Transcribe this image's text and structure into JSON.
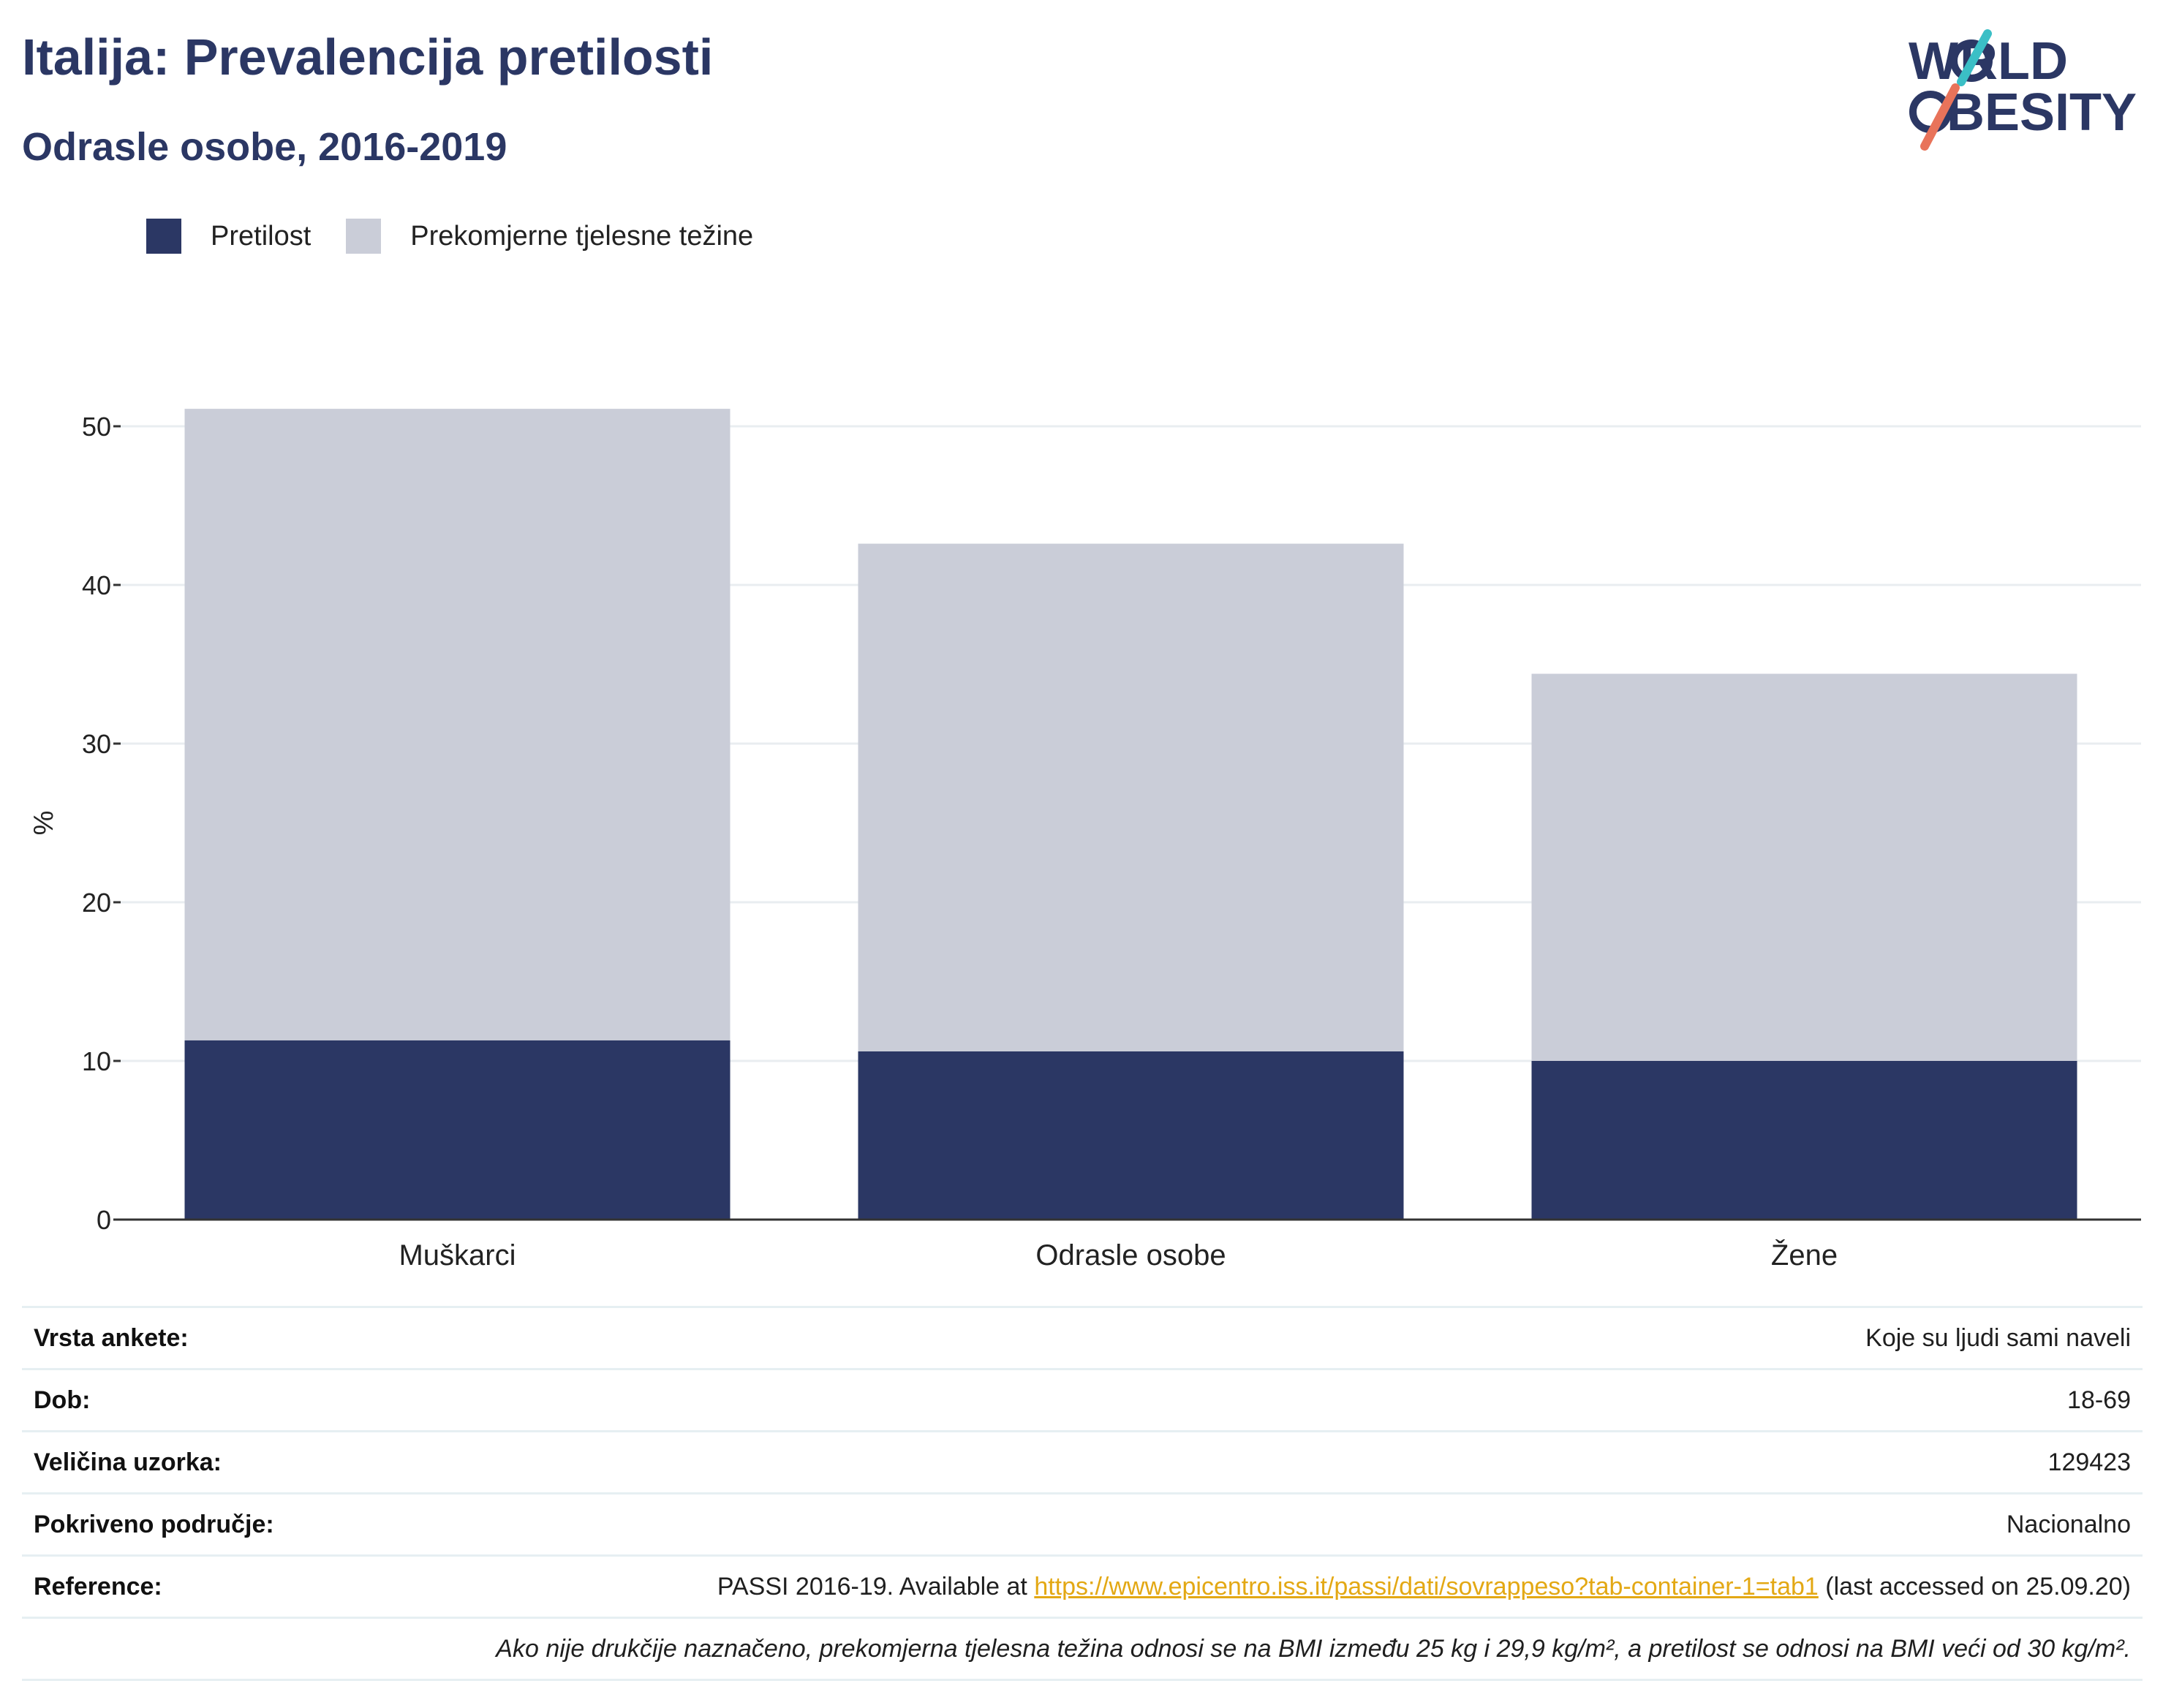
{
  "header": {
    "title": "Italija: Prevalencija pretilosti",
    "subtitle": "Odrasle osobe, 2016-2019",
    "logo_line1": "WORLD",
    "logo_line2": "OBESITY"
  },
  "colors": {
    "obesity": "#2b3764",
    "overweight": "#cacdd8",
    "title": "#2b3764",
    "link": "#e3a814"
  },
  "chart_data": {
    "type": "bar",
    "stacked": true,
    "categories": [
      "Muškarci",
      "Odrasle osobe",
      "Žene"
    ],
    "series": [
      {
        "name": "Pretilost",
        "values": [
          11.3,
          10.6,
          10.0
        ]
      },
      {
        "name": "Prekomjerne tjelesne težine",
        "values": [
          39.8,
          32.0,
          24.4
        ]
      }
    ],
    "ylabel": "%",
    "ylim": [
      0,
      55
    ],
    "yticks": [
      0,
      10,
      20,
      30,
      40,
      50
    ],
    "grid": true,
    "legend": "top-left"
  },
  "info": {
    "rows": [
      {
        "label": "Vrsta ankete:",
        "value": "Koje su ljudi sami naveli"
      },
      {
        "label": "Dob:",
        "value": "18-69"
      },
      {
        "label": "Veličina uzorka:",
        "value": "129423"
      },
      {
        "label": "Pokriveno područje:",
        "value": "Nacionalno"
      }
    ],
    "reference_label": "Reference:",
    "reference_prefix": "PASSI 2016-19. Available at ",
    "reference_link": "https://www.epicentro.iss.it/passi/dati/sovrappeso?tab-container-1=tab1",
    "reference_suffix": " (last accessed on 25.09.20)",
    "note": "Ako nije drukčije naznačeno, prekomjerna tjelesna težina odnosi se na BMI između 25 kg i 29,9 kg/m², a pretilost se odnosi na BMI veći od 30 kg/m²."
  }
}
